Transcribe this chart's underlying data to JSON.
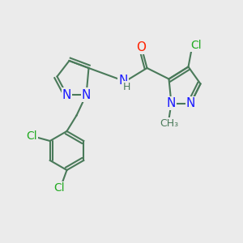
{
  "background_color": "#ebebeb",
  "bond_color": "#4a7a5a",
  "bond_width": 1.5,
  "atom_colors": {
    "N": "#1a1aff",
    "O": "#ff2200",
    "Cl": "#22aa22",
    "C": "#4a7a5a"
  },
  "font_size_atom": 11,
  "font_size_small": 9,
  "font_size_cl": 10,
  "font_size_methyl": 9
}
